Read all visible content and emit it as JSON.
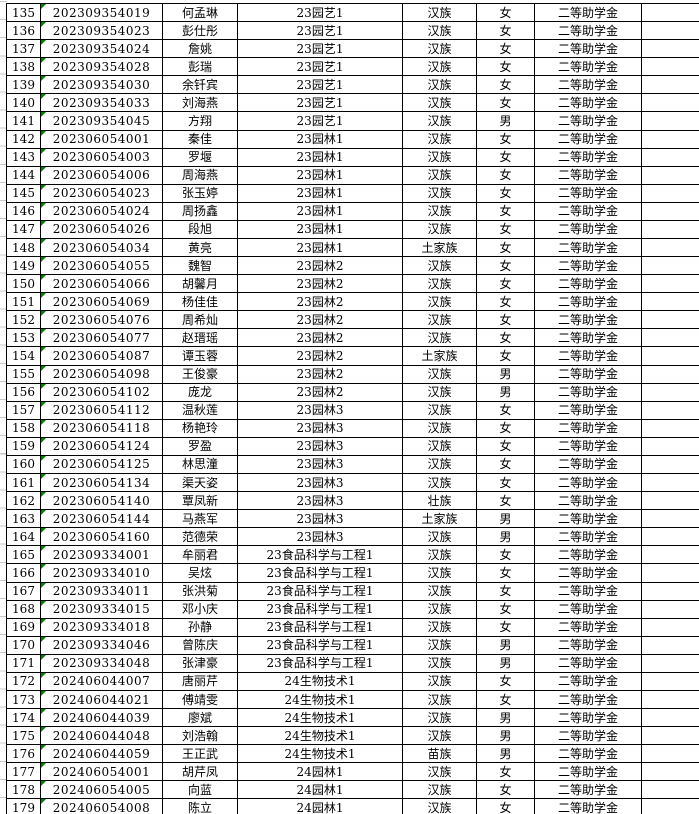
{
  "app": {
    "description": "spreadsheet cell grid, scholarship roster, rows 135-179, no headers visible"
  },
  "colors": {
    "cell_border": "#000000",
    "sheet_gridline": "#c9c9c9",
    "number_as_text_indicator": "#008000",
    "background": "#ffffff",
    "text": "#000000"
  },
  "table": {
    "rows": [
      {
        "num": "135",
        "id": "202309354019",
        "name": "何孟琳",
        "class_name": "23园艺1",
        "ethnicity": "汉族",
        "gender": "女",
        "scholarship": "二等助学金"
      },
      {
        "num": "136",
        "id": "202309354023",
        "name": "彭仕彤",
        "class_name": "23园艺1",
        "ethnicity": "汉族",
        "gender": "女",
        "scholarship": "二等助学金"
      },
      {
        "num": "137",
        "id": "202309354024",
        "name": "詹姚",
        "class_name": "23园艺1",
        "ethnicity": "汉族",
        "gender": "女",
        "scholarship": "二等助学金"
      },
      {
        "num": "138",
        "id": "202309354028",
        "name": "彭瑞",
        "class_name": "23园艺1",
        "ethnicity": "汉族",
        "gender": "女",
        "scholarship": "二等助学金"
      },
      {
        "num": "139",
        "id": "202309354030",
        "name": "余钎宾",
        "class_name": "23园艺1",
        "ethnicity": "汉族",
        "gender": "女",
        "scholarship": "二等助学金"
      },
      {
        "num": "140",
        "id": "202309354033",
        "name": "刘海燕",
        "class_name": "23园艺1",
        "ethnicity": "汉族",
        "gender": "女",
        "scholarship": "二等助学金"
      },
      {
        "num": "141",
        "id": "202309354045",
        "name": "方翔",
        "class_name": "23园艺1",
        "ethnicity": "汉族",
        "gender": "男",
        "scholarship": "二等助学金"
      },
      {
        "num": "142",
        "id": "202306054001",
        "name": "秦佳",
        "class_name": "23园林1",
        "ethnicity": "汉族",
        "gender": "女",
        "scholarship": "二等助学金"
      },
      {
        "num": "143",
        "id": "202306054003",
        "name": "罗堰",
        "class_name": "23园林1",
        "ethnicity": "汉族",
        "gender": "女",
        "scholarship": "二等助学金"
      },
      {
        "num": "144",
        "id": "202306054006",
        "name": "周海燕",
        "class_name": "23园林1",
        "ethnicity": "汉族",
        "gender": "女",
        "scholarship": "二等助学金"
      },
      {
        "num": "145",
        "id": "202306054023",
        "name": "张玉婷",
        "class_name": "23园林1",
        "ethnicity": "汉族",
        "gender": "女",
        "scholarship": "二等助学金"
      },
      {
        "num": "146",
        "id": "202306054024",
        "name": "周扬鑫",
        "class_name": "23园林1",
        "ethnicity": "汉族",
        "gender": "女",
        "scholarship": "二等助学金"
      },
      {
        "num": "147",
        "id": "202306054026",
        "name": "段旭",
        "class_name": "23园林1",
        "ethnicity": "汉族",
        "gender": "女",
        "scholarship": "二等助学金"
      },
      {
        "num": "148",
        "id": "202306054034",
        "name": "黄亮",
        "class_name": "23园林1",
        "ethnicity": "土家族",
        "gender": "女",
        "scholarship": "二等助学金"
      },
      {
        "num": "149",
        "id": "202306054055",
        "name": "魏智",
        "class_name": "23园林2",
        "ethnicity": "汉族",
        "gender": "女",
        "scholarship": "二等助学金"
      },
      {
        "num": "150",
        "id": "202306054066",
        "name": "胡馨月",
        "class_name": "23园林2",
        "ethnicity": "汉族",
        "gender": "女",
        "scholarship": "二等助学金"
      },
      {
        "num": "151",
        "id": "202306054069",
        "name": "杨佳佳",
        "class_name": "23园林2",
        "ethnicity": "汉族",
        "gender": "女",
        "scholarship": "二等助学金"
      },
      {
        "num": "152",
        "id": "202306054076",
        "name": "周希灿",
        "class_name": "23园林2",
        "ethnicity": "汉族",
        "gender": "女",
        "scholarship": "二等助学金"
      },
      {
        "num": "153",
        "id": "202306054077",
        "name": "赵瑨瑶",
        "class_name": "23园林2",
        "ethnicity": "汉族",
        "gender": "女",
        "scholarship": "二等助学金"
      },
      {
        "num": "154",
        "id": "202306054087",
        "name": "谭玉蓉",
        "class_name": "23园林2",
        "ethnicity": "土家族",
        "gender": "女",
        "scholarship": "二等助学金"
      },
      {
        "num": "155",
        "id": "202306054098",
        "name": "王俊豪",
        "class_name": "23园林2",
        "ethnicity": "汉族",
        "gender": "男",
        "scholarship": "二等助学金"
      },
      {
        "num": "156",
        "id": "202306054102",
        "name": "庞龙",
        "class_name": "23园林2",
        "ethnicity": "汉族",
        "gender": "男",
        "scholarship": "二等助学金"
      },
      {
        "num": "157",
        "id": "202306054112",
        "name": "温秋莲",
        "class_name": "23园林3",
        "ethnicity": "汉族",
        "gender": "女",
        "scholarship": "二等助学金"
      },
      {
        "num": "158",
        "id": "202306054118",
        "name": "杨艳玲",
        "class_name": "23园林3",
        "ethnicity": "汉族",
        "gender": "女",
        "scholarship": "二等助学金"
      },
      {
        "num": "159",
        "id": "202306054124",
        "name": "罗盈",
        "class_name": "23园林3",
        "ethnicity": "汉族",
        "gender": "女",
        "scholarship": "二等助学金"
      },
      {
        "num": "160",
        "id": "202306054125",
        "name": "林思潼",
        "class_name": "23园林3",
        "ethnicity": "汉族",
        "gender": "女",
        "scholarship": "二等助学金"
      },
      {
        "num": "161",
        "id": "202306054134",
        "name": "渠天姿",
        "class_name": "23园林3",
        "ethnicity": "汉族",
        "gender": "女",
        "scholarship": "二等助学金"
      },
      {
        "num": "162",
        "id": "202306054140",
        "name": "覃凤新",
        "class_name": "23园林3",
        "ethnicity": "壮族",
        "gender": "女",
        "scholarship": "二等助学金"
      },
      {
        "num": "163",
        "id": "202306054144",
        "name": "马燕军",
        "class_name": "23园林3",
        "ethnicity": "土家族",
        "gender": "男",
        "scholarship": "二等助学金"
      },
      {
        "num": "164",
        "id": "202306054160",
        "name": "范德荣",
        "class_name": "23园林3",
        "ethnicity": "汉族",
        "gender": "男",
        "scholarship": "二等助学金"
      },
      {
        "num": "165",
        "id": "202309334001",
        "name": "牟丽君",
        "class_name": "23食品科学与工程1",
        "ethnicity": "汉族",
        "gender": "女",
        "scholarship": "二等助学金"
      },
      {
        "num": "166",
        "id": "202309334010",
        "name": "吴炫",
        "class_name": "23食品科学与工程1",
        "ethnicity": "汉族",
        "gender": "女",
        "scholarship": "二等助学金"
      },
      {
        "num": "167",
        "id": "202309334011",
        "name": "张洪菊",
        "class_name": "23食品科学与工程1",
        "ethnicity": "汉族",
        "gender": "女",
        "scholarship": "二等助学金"
      },
      {
        "num": "168",
        "id": "202309334015",
        "name": "邓小庆",
        "class_name": "23食品科学与工程1",
        "ethnicity": "汉族",
        "gender": "女",
        "scholarship": "二等助学金"
      },
      {
        "num": "169",
        "id": "202309334018",
        "name": "孙静",
        "class_name": "23食品科学与工程1",
        "ethnicity": "汉族",
        "gender": "女",
        "scholarship": "二等助学金"
      },
      {
        "num": "170",
        "id": "202309334046",
        "name": "曾陈庆",
        "class_name": "23食品科学与工程1",
        "ethnicity": "汉族",
        "gender": "男",
        "scholarship": "二等助学金"
      },
      {
        "num": "171",
        "id": "202309334048",
        "name": "张津豪",
        "class_name": "23食品科学与工程1",
        "ethnicity": "汉族",
        "gender": "男",
        "scholarship": "二等助学金"
      },
      {
        "num": "172",
        "id": "202406044007",
        "name": "唐丽芹",
        "class_name": "24生物技术1",
        "ethnicity": "汉族",
        "gender": "女",
        "scholarship": "二等助学金"
      },
      {
        "num": "173",
        "id": "202406044021",
        "name": "傅靖雯",
        "class_name": "24生物技术1",
        "ethnicity": "汉族",
        "gender": "女",
        "scholarship": "二等助学金"
      },
      {
        "num": "174",
        "id": "202406044039",
        "name": "廖斌",
        "class_name": "24生物技术1",
        "ethnicity": "汉族",
        "gender": "男",
        "scholarship": "二等助学金"
      },
      {
        "num": "175",
        "id": "202406044048",
        "name": "刘浩翰",
        "class_name": "24生物技术1",
        "ethnicity": "汉族",
        "gender": "男",
        "scholarship": "二等助学金"
      },
      {
        "num": "176",
        "id": "202406044059",
        "name": "王正武",
        "class_name": "24生物技术1",
        "ethnicity": "苗族",
        "gender": "男",
        "scholarship": "二等助学金"
      },
      {
        "num": "177",
        "id": "202406054001",
        "name": "胡芹凤",
        "class_name": "24园林1",
        "ethnicity": "汉族",
        "gender": "女",
        "scholarship": "二等助学金"
      },
      {
        "num": "178",
        "id": "202406054005",
        "name": "向蓝",
        "class_name": "24园林1",
        "ethnicity": "汉族",
        "gender": "女",
        "scholarship": "二等助学金"
      },
      {
        "num": "179",
        "id": "202406054008",
        "name": "陈立",
        "class_name": "24园林1",
        "ethnicity": "汉族",
        "gender": "女",
        "scholarship": "二等助学金"
      }
    ]
  }
}
